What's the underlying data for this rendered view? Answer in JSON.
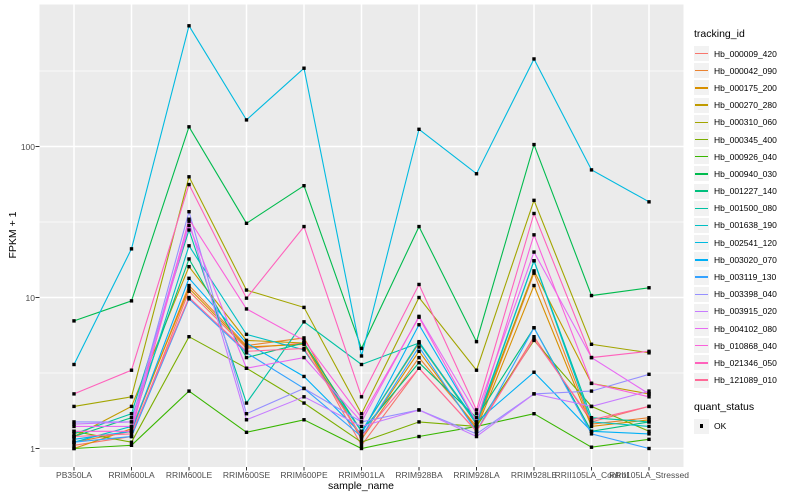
{
  "figure": {
    "bg": "#FFFFFF",
    "panel_bg": "#EBEBEB",
    "grid_color": "#FFFFFF",
    "tick_mark_color": "#333333",
    "tick_label_color": "#4D4D4D",
    "axis_title_color": "#000000",
    "legend_key_bg": "#F2F2F2",
    "point_color": "#000000"
  },
  "axes": {
    "xlabel": "sample_name",
    "ylabel": "FPKM + 1"
  },
  "legend": {
    "tracking_title": "tracking_id",
    "quant_title": "quant_status",
    "quant_ok_label": "OK"
  },
  "chart_data": {
    "type": "line",
    "x_type": "categorical",
    "y_scale": "log10",
    "title": "",
    "xlabel": "sample_name",
    "ylabel": "FPKM + 1",
    "ylim": [
      1,
      630
    ],
    "y_major_ticks": [
      1,
      10,
      100
    ],
    "y_minor_ticks": [
      3.162,
      31.62,
      316.2
    ],
    "grid": "white-on-grey",
    "legend_position": "right",
    "point_shape": "filled-square-black",
    "categories": [
      "PB350LA",
      "RRIM600LA",
      "RRIM600LE",
      "RRIM600SE",
      "RRIM600PE",
      "RRIM901LA",
      "RRIM928BA",
      "RRIM928LA",
      "RRIM928LE",
      "RRII105LA_Control",
      "RRII105LA_Stressed"
    ],
    "series": [
      {
        "name": "Hb_000009_420",
        "color": "#F8766D",
        "values": [
          1.05,
          1.2,
          11,
          4.6,
          5.0,
          1.05,
          3.4,
          1.3,
          5.5,
          1.5,
          1.9
        ]
      },
      {
        "name": "Hb_000042_090",
        "color": "#EA8331",
        "values": [
          1.1,
          1.3,
          12,
          4.8,
          5.4,
          1.15,
          4.0,
          1.4,
          14.5,
          1.45,
          1.6
        ]
      },
      {
        "name": "Hb_000175_200",
        "color": "#D89000",
        "values": [
          1.0,
          1.35,
          11.5,
          4.7,
          4.9,
          1.2,
          4.4,
          1.35,
          12,
          1.4,
          1.55
        ]
      },
      {
        "name": "Hb_000270_280",
        "color": "#C09B00",
        "values": [
          1.2,
          1.9,
          16,
          5.2,
          5.0,
          1.3,
          5.0,
          1.45,
          15,
          2.7,
          2.3
        ]
      },
      {
        "name": "Hb_000310_060",
        "color": "#A3A500",
        "values": [
          1.9,
          2.2,
          63,
          11.2,
          8.6,
          1.7,
          10,
          3.3,
          44,
          4.9,
          4.3
        ]
      },
      {
        "name": "Hb_000345_400",
        "color": "#7CAE00",
        "values": [
          1.3,
          1.1,
          5.5,
          3.4,
          2.0,
          1.1,
          1.5,
          1.4,
          5.2,
          1.9,
          1.3
        ]
      },
      {
        "name": "Hb_000926_040",
        "color": "#39B600",
        "values": [
          1.0,
          1.05,
          2.4,
          1.28,
          1.55,
          1.0,
          1.2,
          1.4,
          1.7,
          1.02,
          1.15
        ]
      },
      {
        "name": "Hb_000940_030",
        "color": "#00BB4E",
        "values": [
          7.0,
          9.5,
          135,
          31,
          55,
          4.6,
          29.5,
          5.1,
          103,
          10.3,
          11.6
        ]
      },
      {
        "name": "Hb_001227_140",
        "color": "#00BF7D",
        "values": [
          1.2,
          1.6,
          18,
          4.0,
          5.0,
          1.3,
          3.7,
          1.6,
          6.3,
          1.3,
          1.5
        ]
      },
      {
        "name": "Hb_001500_080",
        "color": "#00C1A3",
        "values": [
          1.25,
          1.7,
          28,
          2.0,
          6.9,
          3.6,
          5.0,
          1.5,
          17.5,
          1.6,
          1.5
        ]
      },
      {
        "name": "Hb_001638_190",
        "color": "#00BFC4",
        "values": [
          1.1,
          1.4,
          22,
          5.7,
          4.5,
          1.3,
          5.1,
          1.45,
          17.5,
          1.5,
          1.4
        ]
      },
      {
        "name": "Hb_002541_120",
        "color": "#00BAE0",
        "values": [
          3.6,
          21,
          630,
          150,
          330,
          4.1,
          130,
          66,
          380,
          70,
          43
        ]
      },
      {
        "name": "Hb_003020_070",
        "color": "#00B0F6",
        "values": [
          1.15,
          1.3,
          13.4,
          5.0,
          3.0,
          1.25,
          6.6,
          1.5,
          3.2,
          1.3,
          1.25
        ]
      },
      {
        "name": "Hb_003119_130",
        "color": "#35A2FF",
        "values": [
          1.1,
          1.2,
          9.8,
          4.3,
          2.5,
          1.2,
          4.7,
          1.3,
          6.3,
          1.25,
          1.0
        ]
      },
      {
        "name": "Hb_003398_040",
        "color": "#9590FF",
        "values": [
          1.5,
          1.5,
          37,
          1.7,
          2.5,
          1.5,
          1.8,
          1.25,
          2.3,
          2.4,
          3.1
        ]
      },
      {
        "name": "Hb_003915_020",
        "color": "#C77CFF",
        "values": [
          1.45,
          1.5,
          32,
          1.55,
          2.2,
          1.4,
          1.8,
          1.2,
          2.3,
          1.9,
          2.4
        ]
      },
      {
        "name": "Hb_004102_080",
        "color": "#E76BF3",
        "values": [
          1.4,
          1.4,
          30,
          3.4,
          4.0,
          1.5,
          7.5,
          1.7,
          20,
          4.0,
          2.3
        ]
      },
      {
        "name": "Hb_010868_040",
        "color": "#FA62DB",
        "values": [
          1.3,
          1.3,
          33,
          8.4,
          5.2,
          1.6,
          7.4,
          1.5,
          26,
          2.7,
          2.2
        ]
      },
      {
        "name": "Hb_021346_050",
        "color": "#FF62BC",
        "values": [
          2.3,
          3.3,
          56,
          9.9,
          29.5,
          2.2,
          12.2,
          1.8,
          36,
          4.0,
          4.4
        ]
      },
      {
        "name": "Hb_121089_010",
        "color": "#FF6A98",
        "values": [
          1.2,
          1.25,
          10,
          4.4,
          4.6,
          1.2,
          3.4,
          1.3,
          5.3,
          1.55,
          1.9
        ]
      }
    ]
  }
}
